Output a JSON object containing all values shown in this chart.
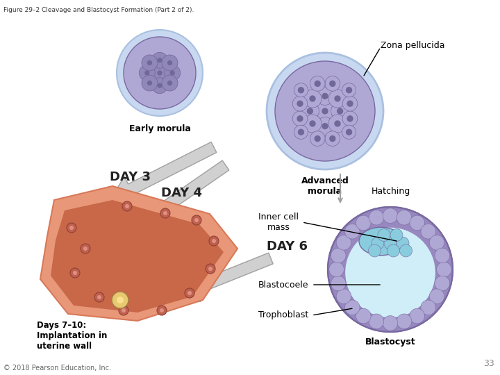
{
  "figure_title": "Figure 29–2 Cleavage and Blastocyst Formation (Part 2 of 2).",
  "page_number": "33",
  "copyright": "© 2018 Pearson Education, Inc.",
  "background_color": "#ffffff",
  "labels": {
    "zona_pellucida": "Zona pellucida",
    "early_morula": "Early morula",
    "advanced_morula": "Advanced\nmorula",
    "day3": "DAY 3",
    "day4": "DAY 4",
    "day6": "DAY 6",
    "hatching": "Hatching",
    "inner_cell_mass": "Inner cell\nmass",
    "blastocoele": "Blastocoele",
    "trophoblast": "Trophoblast",
    "blastocyst": "Blastocyst",
    "days7_10": "Days 7–10:\nImplantation in\nuterine wall"
  },
  "colors": {
    "morula_outer": "#b0a8d4",
    "morula_inner": "#9088b8",
    "morula_zona": "#c8d8f0",
    "morula_cell_border": "#7868a0",
    "morula_cell_dark": "#706898",
    "blastocyst_outer": "#9888c0",
    "blastocyst_zona": "#c0cce8",
    "blastocyst_inner_mass": "#88ccdd",
    "blastocyst_cavity": "#d0eef8",
    "arrow_color": "#d0d0d0",
    "arrow_edge": "#a0a0a0",
    "uterus_outer": "#d87858",
    "uterus_inner": "#c86848",
    "uterus_lining": "#e89878",
    "line_color": "#000000",
    "text_color": "#000000",
    "label_color": "#333333",
    "day_label_color": "#222222",
    "hatching_arrow": "#a0a0a0",
    "title_color": "#333333",
    "page_color": "#888888",
    "copy_color": "#666666"
  }
}
